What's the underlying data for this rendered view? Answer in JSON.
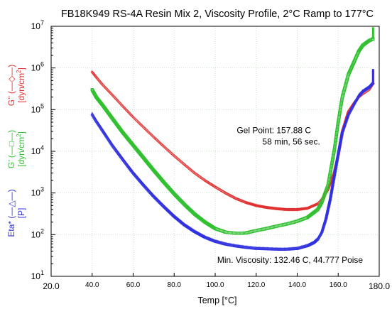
{
  "chart_data": {
    "type": "scatter",
    "title": "FB18K949 RS-4A Resin Mix 2, Viscosity Profile, 2°C Ramp to 177°C",
    "xlabel": "Temp [°C]",
    "xlim": [
      20,
      180
    ],
    "ylim": [
      10,
      10000000
    ],
    "y_scale": "log",
    "grid": true,
    "x_ticks": [
      "20.0",
      "40.0",
      "60.0",
      "80.0",
      "100.0",
      "120.0",
      "140.0",
      "160.0",
      "180.0"
    ],
    "y_ticks": [
      {
        "base": "10",
        "exp": "1"
      },
      {
        "base": "10",
        "exp": "2"
      },
      {
        "base": "10",
        "exp": "3"
      },
      {
        "base": "10",
        "exp": "4"
      },
      {
        "base": "10",
        "exp": "5"
      },
      {
        "base": "10",
        "exp": "6"
      },
      {
        "base": "10",
        "exp": "7"
      }
    ],
    "y_axis_labels": [
      {
        "name": "G'' (—◇—)",
        "unit": "[dyn/cm",
        "unit_sup": "2",
        "unit_close": "]",
        "color": "#e03030"
      },
      {
        "name": "G' (—□—)",
        "unit": "[dyn/cm",
        "unit_sup": "2",
        "unit_close": "]",
        "color": "#30c030"
      },
      {
        "name": "Eta* (—△—)",
        "unit": "[P]",
        "unit_sup": "",
        "unit_close": "",
        "color": "#3030e0"
      }
    ],
    "annotations": [
      {
        "text": "Gel Point: 157.88 C",
        "x": 110.5,
        "y": 27000
      },
      {
        "text": "58 min, 56 sec.",
        "x": 123,
        "y": 14500
      },
      {
        "text": "Min. Viscosity: 132.46 C, 44.777 Poise",
        "x": 101,
        "y": 21
      }
    ],
    "series": [
      {
        "name": "G''",
        "color": "#e03030",
        "marker": "diamond",
        "x": [
          40,
          42,
          45,
          50,
          55,
          60,
          65,
          70,
          75,
          80,
          85,
          90,
          95,
          100,
          105,
          110,
          115,
          120,
          125,
          130,
          135,
          140,
          145,
          150,
          152,
          155,
          158,
          160,
          162,
          165,
          168,
          170,
          172,
          175,
          177
        ],
        "y": [
          800000,
          600000,
          400000,
          220000,
          120000,
          66000,
          38000,
          22000,
          13000,
          7800,
          4800,
          3000,
          2000,
          1400,
          1000,
          740,
          590,
          500,
          450,
          420,
          400,
          400,
          430,
          550,
          700,
          1200,
          3000,
          8000,
          30000,
          90000,
          150000,
          200000,
          240000,
          300000,
          420000
        ]
      },
      {
        "name": "G'",
        "color": "#30c030",
        "marker": "square",
        "x": [
          40,
          42,
          45,
          50,
          55,
          60,
          65,
          70,
          75,
          80,
          85,
          90,
          95,
          100,
          105,
          110,
          113,
          115,
          120,
          125,
          130,
          135,
          140,
          145,
          150,
          152,
          155,
          158,
          160,
          162,
          165,
          168,
          170,
          172,
          175,
          177
        ],
        "y": [
          300000,
          200000,
          130000,
          60000,
          28000,
          14000,
          7000,
          3500,
          1800,
          950,
          530,
          310,
          200,
          140,
          115,
          108,
          108,
          110,
          125,
          140,
          160,
          180,
          210,
          260,
          400,
          600,
          1500,
          10000,
          50000,
          200000,
          700000,
          1500000,
          2500000,
          3500000,
          4500000,
          5000000
        ]
      },
      {
        "name": "Eta*",
        "color": "#3030e0",
        "marker": "triangle",
        "x": [
          40,
          42,
          45,
          50,
          55,
          60,
          65,
          70,
          75,
          80,
          85,
          90,
          95,
          100,
          105,
          110,
          115,
          120,
          125,
          130,
          132.46,
          135,
          140,
          145,
          148,
          150,
          152,
          154,
          156,
          158,
          160,
          162,
          165,
          168,
          170,
          172,
          175,
          177
        ],
        "y": [
          80000,
          55000,
          33000,
          14000,
          6500,
          3100,
          1600,
          850,
          480,
          280,
          175,
          120,
          88,
          70,
          60,
          54,
          50,
          47,
          46,
          45,
          44.777,
          45,
          47,
          55,
          65,
          80,
          120,
          250,
          700,
          2500,
          9000,
          30000,
          80000,
          150000,
          220000,
          280000,
          350000,
          450000
        ]
      }
    ]
  }
}
